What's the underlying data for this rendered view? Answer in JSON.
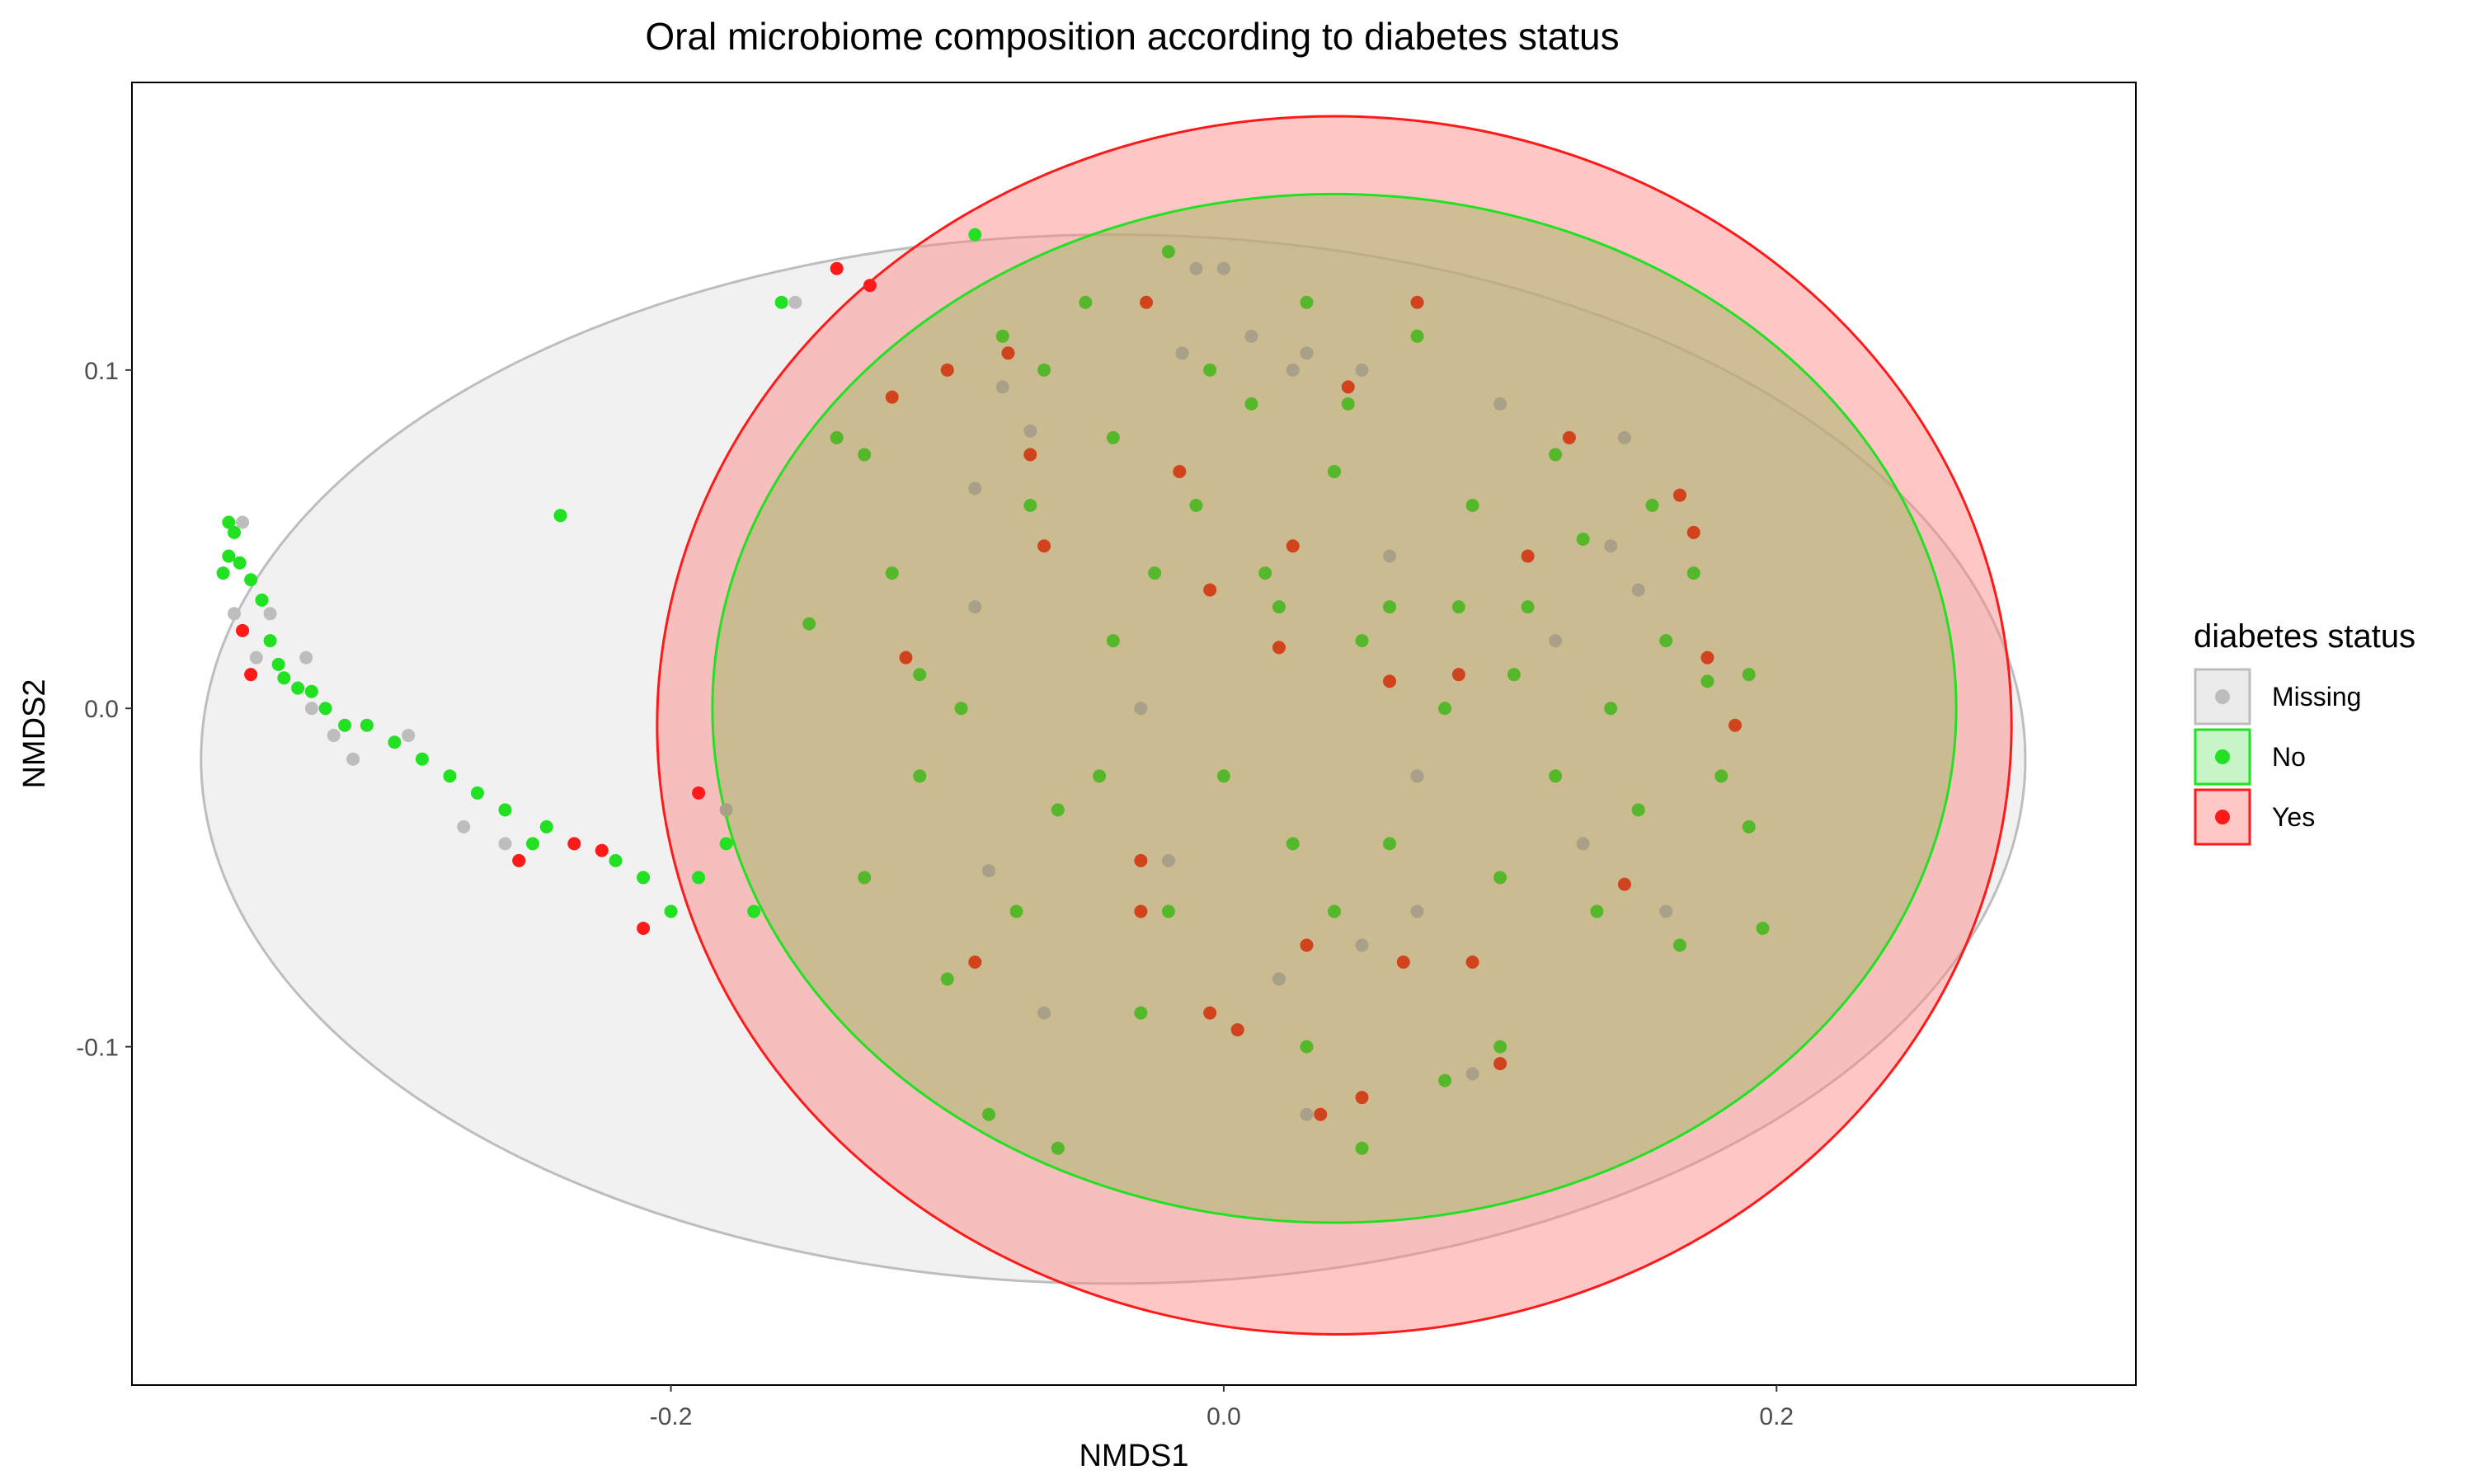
{
  "chart_data": {
    "type": "scatter",
    "title": "Oral microbiome composition according to diabetes status",
    "xlabel": "NMDS1",
    "ylabel": "NMDS2",
    "xlim": [
      -0.395,
      0.33
    ],
    "ylim": [
      -0.2,
      0.185
    ],
    "xticks": [
      -0.2,
      0.0,
      0.2
    ],
    "xtick_labels": [
      "-0.2",
      "0.0",
      "0.2"
    ],
    "yticks": [
      -0.1,
      0.0,
      0.1
    ],
    "ytick_labels": [
      "-0.1",
      "0.0",
      "0.1"
    ],
    "grid": false,
    "legend": {
      "title": "diabetes status",
      "position": "right",
      "entries": [
        "Missing",
        "No",
        "Yes"
      ]
    },
    "colors": {
      "Missing": "#bdbdbd",
      "No": "#22e022",
      "Yes": "#ff1a1a",
      "No_overlap": "#55b82a",
      "Yes_overlap": "#d0431c",
      "Missing_overlap": "#a8a088"
    },
    "ellipses": [
      {
        "group": "Missing",
        "center": [
          -0.04,
          -0.015
        ],
        "semi_axes": [
          0.33,
          0.155
        ]
      },
      {
        "group": "Yes",
        "center": [
          0.04,
          -0.005
        ],
        "semi_axes": [
          0.245,
          0.18
        ]
      },
      {
        "group": "No",
        "center": [
          0.04,
          0.0
        ],
        "semi_axes": [
          0.225,
          0.152
        ]
      }
    ],
    "series": [
      {
        "name": "Missing",
        "points": [
          [
            -0.358,
            0.028
          ],
          [
            -0.355,
            0.055
          ],
          [
            -0.35,
            0.015
          ],
          [
            -0.345,
            0.028
          ],
          [
            -0.332,
            0.015
          ],
          [
            -0.33,
            0.0
          ],
          [
            -0.322,
            -0.008
          ],
          [
            -0.315,
            -0.015
          ],
          [
            -0.295,
            -0.008
          ],
          [
            -0.275,
            -0.035
          ],
          [
            -0.26,
            -0.04
          ],
          [
            -0.155,
            0.12
          ],
          [
            -0.18,
            -0.03
          ],
          [
            -0.09,
            0.065
          ],
          [
            -0.09,
            0.03
          ],
          [
            -0.085,
            -0.048
          ],
          [
            -0.08,
            0.095
          ],
          [
            -0.07,
            0.082
          ],
          [
            -0.065,
            -0.09
          ],
          [
            -0.03,
            0.0
          ],
          [
            -0.02,
            -0.045
          ],
          [
            -0.015,
            0.105
          ],
          [
            -0.01,
            0.13
          ],
          [
            0.0,
            0.13
          ],
          [
            0.01,
            0.11
          ],
          [
            0.02,
            -0.08
          ],
          [
            0.025,
            0.1
          ],
          [
            0.03,
            0.105
          ],
          [
            0.03,
            -0.12
          ],
          [
            0.05,
            0.1
          ],
          [
            0.06,
            0.045
          ],
          [
            0.05,
            -0.07
          ],
          [
            0.07,
            -0.02
          ],
          [
            0.07,
            -0.06
          ],
          [
            0.09,
            -0.108
          ],
          [
            0.1,
            0.09
          ],
          [
            0.12,
            0.02
          ],
          [
            0.13,
            -0.04
          ],
          [
            0.14,
            0.048
          ],
          [
            0.145,
            0.08
          ],
          [
            0.15,
            0.035
          ],
          [
            0.16,
            -0.06
          ]
        ]
      },
      {
        "name": "No",
        "points": [
          [
            -0.36,
            0.055
          ],
          [
            -0.358,
            0.052
          ],
          [
            -0.36,
            0.045
          ],
          [
            -0.362,
            0.04
          ],
          [
            -0.356,
            0.043
          ],
          [
            -0.352,
            0.038
          ],
          [
            -0.348,
            0.032
          ],
          [
            -0.345,
            0.02
          ],
          [
            -0.342,
            0.013
          ],
          [
            -0.34,
            0.009
          ],
          [
            -0.335,
            0.006
          ],
          [
            -0.33,
            0.005
          ],
          [
            -0.325,
            0.0
          ],
          [
            -0.318,
            -0.005
          ],
          [
            -0.31,
            -0.005
          ],
          [
            -0.3,
            -0.01
          ],
          [
            -0.29,
            -0.015
          ],
          [
            -0.28,
            -0.02
          ],
          [
            -0.27,
            -0.025
          ],
          [
            -0.26,
            -0.03
          ],
          [
            -0.255,
            -0.045
          ],
          [
            -0.25,
            -0.04
          ],
          [
            -0.245,
            -0.035
          ],
          [
            -0.24,
            0.057
          ],
          [
            -0.22,
            -0.045
          ],
          [
            -0.21,
            -0.05
          ],
          [
            -0.2,
            -0.06
          ],
          [
            -0.19,
            -0.05
          ],
          [
            -0.18,
            -0.04
          ],
          [
            -0.17,
            -0.06
          ],
          [
            -0.16,
            0.12
          ],
          [
            -0.15,
            0.025
          ],
          [
            -0.14,
            0.08
          ],
          [
            -0.13,
            0.075
          ],
          [
            -0.12,
            0.04
          ],
          [
            -0.11,
            0.01
          ],
          [
            -0.1,
            -0.08
          ],
          [
            -0.09,
            0.14
          ],
          [
            -0.08,
            0.11
          ],
          [
            -0.07,
            0.06
          ],
          [
            -0.06,
            -0.03
          ],
          [
            -0.05,
            0.12
          ],
          [
            -0.04,
            0.08
          ],
          [
            -0.03,
            -0.09
          ],
          [
            -0.02,
            0.135
          ],
          [
            -0.01,
            0.06
          ],
          [
            0.0,
            -0.02
          ],
          [
            0.01,
            0.09
          ],
          [
            0.02,
            0.03
          ],
          [
            0.03,
            -0.1
          ],
          [
            0.04,
            0.07
          ],
          [
            0.05,
            0.02
          ],
          [
            0.06,
            -0.04
          ],
          [
            0.07,
            0.11
          ],
          [
            0.08,
            0.0
          ],
          [
            0.09,
            0.06
          ],
          [
            0.1,
            -0.05
          ],
          [
            0.11,
            0.03
          ],
          [
            0.12,
            -0.02
          ],
          [
            0.13,
            0.05
          ],
          [
            0.14,
            0.0
          ],
          [
            0.15,
            -0.03
          ],
          [
            0.16,
            0.02
          ],
          [
            0.17,
            0.04
          ],
          [
            0.18,
            -0.02
          ],
          [
            0.19,
            0.01
          ],
          [
            0.195,
            -0.065
          ],
          [
            0.19,
            -0.035
          ],
          [
            0.175,
            0.008
          ],
          [
            0.165,
            -0.07
          ],
          [
            -0.085,
            -0.12
          ],
          [
            -0.06,
            -0.13
          ],
          [
            0.05,
            -0.13
          ],
          [
            0.08,
            -0.11
          ],
          [
            0.1,
            -0.1
          ],
          [
            0.12,
            0.075
          ],
          [
            0.03,
            0.12
          ],
          [
            0.015,
            0.04
          ],
          [
            -0.04,
            0.02
          ],
          [
            -0.02,
            -0.06
          ],
          [
            0.04,
            -0.06
          ],
          [
            0.06,
            0.03
          ],
          [
            0.085,
            0.03
          ],
          [
            0.105,
            0.01
          ],
          [
            0.135,
            -0.06
          ],
          [
            0.155,
            0.06
          ],
          [
            -0.13,
            -0.05
          ],
          [
            -0.11,
            -0.02
          ],
          [
            -0.095,
            0.0
          ],
          [
            -0.075,
            -0.06
          ],
          [
            -0.065,
            0.1
          ],
          [
            -0.045,
            -0.02
          ],
          [
            -0.025,
            0.04
          ],
          [
            -0.005,
            0.1
          ],
          [
            0.025,
            -0.04
          ],
          [
            0.045,
            0.09
          ]
        ]
      },
      {
        "name": "Yes",
        "points": [
          [
            -0.355,
            0.023
          ],
          [
            -0.352,
            0.01
          ],
          [
            -0.255,
            -0.045
          ],
          [
            -0.235,
            -0.04
          ],
          [
            -0.225,
            -0.042
          ],
          [
            -0.21,
            -0.065
          ],
          [
            -0.19,
            -0.025
          ],
          [
            -0.14,
            0.13
          ],
          [
            -0.128,
            0.125
          ],
          [
            -0.12,
            0.092
          ],
          [
            -0.115,
            0.015
          ],
          [
            -0.1,
            0.1
          ],
          [
            -0.09,
            -0.075
          ],
          [
            -0.078,
            0.105
          ],
          [
            -0.07,
            0.075
          ],
          [
            -0.065,
            0.048
          ],
          [
            -0.03,
            -0.045
          ],
          [
            -0.03,
            -0.06
          ],
          [
            -0.028,
            0.12
          ],
          [
            -0.016,
            0.07
          ],
          [
            -0.005,
            0.035
          ],
          [
            0.005,
            -0.095
          ],
          [
            0.02,
            0.018
          ],
          [
            0.025,
            0.048
          ],
          [
            0.035,
            -0.12
          ],
          [
            0.045,
            0.095
          ],
          [
            0.06,
            0.008
          ],
          [
            0.065,
            -0.075
          ],
          [
            0.07,
            0.12
          ],
          [
            0.085,
            0.01
          ],
          [
            0.09,
            -0.075
          ],
          [
            0.1,
            -0.105
          ],
          [
            0.11,
            0.045
          ],
          [
            0.125,
            0.08
          ],
          [
            0.145,
            -0.052
          ],
          [
            0.17,
            0.052
          ],
          [
            0.165,
            0.063
          ],
          [
            0.185,
            -0.005
          ],
          [
            0.175,
            0.015
          ],
          [
            0.05,
            -0.115
          ],
          [
            -0.005,
            -0.09
          ],
          [
            0.03,
            -0.07
          ]
        ]
      }
    ]
  }
}
